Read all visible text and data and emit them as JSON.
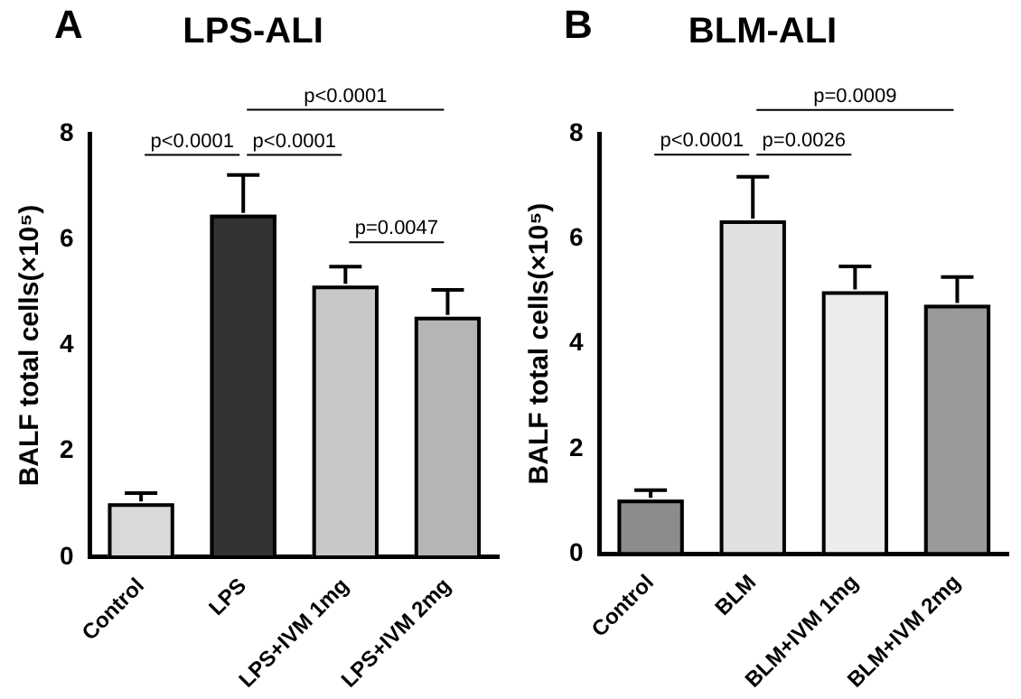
{
  "chart_data": [
    {
      "type": "bar",
      "title": "LPS-ALI",
      "ylabel": "BALF total cells(×10⁵)",
      "categories": [
        "Control",
        "LPS",
        "LPS+IVM 1mg",
        "LPS+IVM 2mg"
      ],
      "values": [
        1.02,
        6.47,
        5.13,
        4.54
      ],
      "errors": [
        [
          1.02,
          1.21
        ],
        [
          6.47,
          7.22
        ],
        [
          5.13,
          5.49
        ],
        [
          4.54,
          5.05
        ]
      ],
      "colors": [
        "#d9d9d9",
        "#333333",
        "#c8c8c8",
        "#b5b5b5"
      ],
      "ylim": [
        0,
        8
      ],
      "yticks": [
        0,
        2,
        4,
        6,
        8
      ],
      "grid": false,
      "legend": false,
      "annotations": [
        "A",
        "p<0.0001",
        "p<0.0001",
        "p<0.0001",
        "p=0.0047"
      ]
    },
    {
      "type": "bar",
      "title": "BLM-ALI",
      "ylabel": "BALF total cells(×10⁵)",
      "categories": [
        "Control",
        "BLM",
        "BLM+IVM 1mg",
        "BLM+IVM 2mg"
      ],
      "values": [
        1.03,
        6.35,
        5.0,
        4.74
      ],
      "errors": [
        [
          1.03,
          1.21
        ],
        [
          6.35,
          7.18
        ],
        [
          5.0,
          5.47
        ],
        [
          4.74,
          5.27
        ]
      ],
      "colors": [
        "#8c8c8c",
        "#e0e0e0",
        "#ececec",
        "#9a9a9a"
      ],
      "ylim": [
        0,
        8
      ],
      "yticks": [
        0,
        2,
        4,
        6,
        8
      ],
      "grid": false,
      "legend": false,
      "annotations": [
        "B",
        "p<0.0001",
        "p=0.0026",
        "p=0.0009"
      ]
    }
  ]
}
